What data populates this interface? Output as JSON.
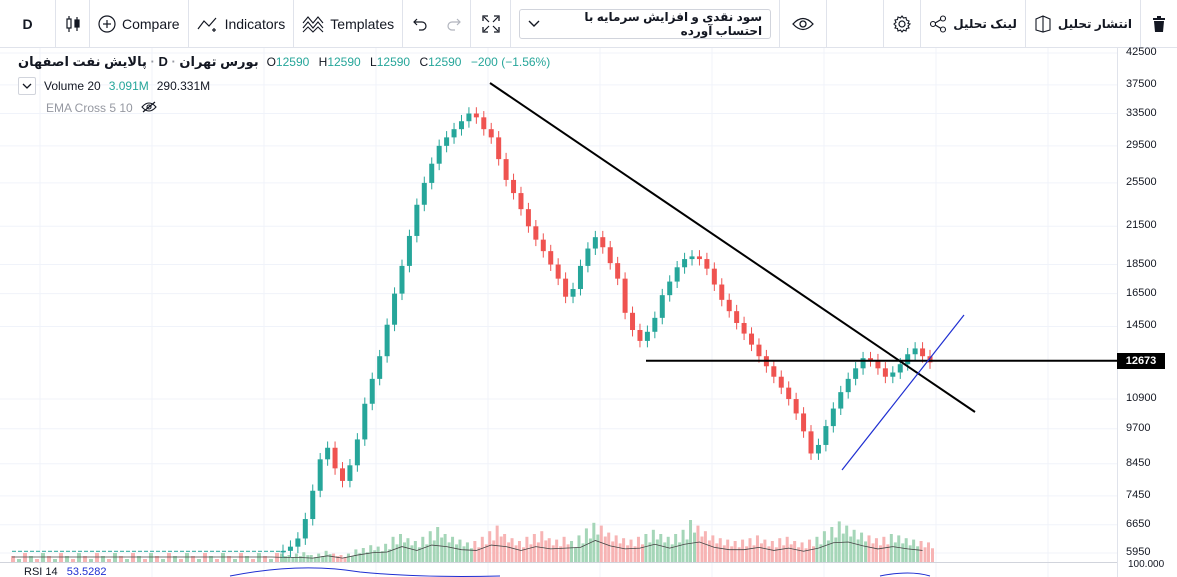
{
  "toolbar": {
    "interval": "D",
    "compare": "Compare",
    "indicators": "Indicators",
    "templates": "Templates",
    "dropdown_value": "سود نقدی و افزایش سرمایه با احتساب آورده",
    "share_link": "لینک تحلیل",
    "publish": "انتشار تحلیل"
  },
  "legend": {
    "exchange": "بورس تهران",
    "symbol": "پالایش نفت اصفهان",
    "interval": "D",
    "o_label": "O",
    "o": "12590",
    "h_label": "H",
    "h": "12590",
    "l_label": "L",
    "l": "12590",
    "c_label": "C",
    "c": "12590",
    "change": "−200 (−1.56%)",
    "volume_label": "Volume 20",
    "volume_value": "3.091M",
    "volume_ma": "290.331M",
    "ema_label": "EMA Cross 5 10"
  },
  "price_axis": {
    "ticks": [
      "42500",
      "37500",
      "33500",
      "29500",
      "25500",
      "21500",
      "18500",
      "16500",
      "14500",
      "10900",
      "9700",
      "8450",
      "7450",
      "6650",
      "5950"
    ],
    "current": "12673",
    "rsi_top": "100.000"
  },
  "rsi": {
    "label": "RSI 14",
    "value": "53.5282"
  },
  "colors": {
    "up": "#26a69a",
    "down": "#ef5350",
    "vol_up": "#a5d6b8",
    "vol_down": "#f7b4b4",
    "trendline": "#000000",
    "support": "#1f2fd1"
  },
  "chart_data": {
    "type": "candlestick",
    "scale": "log",
    "last_price": 12673,
    "resistance_line_price": 12673,
    "candles_close_trend": [
      6000,
      6100,
      6300,
      6800,
      7600,
      8600,
      9000,
      8300,
      7900,
      8400,
      9300,
      10700,
      11800,
      12900,
      14600,
      16500,
      18400,
      20700,
      23400,
      25500,
      27500,
      29500,
      30500,
      31500,
      32500,
      33500,
      33000,
      31500,
      30500,
      28000,
      25800,
      24500,
      23000,
      21500,
      20400,
      19500,
      18500,
      17500,
      16300,
      16800,
      18400,
      19700,
      20600,
      19800,
      18600,
      17500,
      15300,
      14300,
      13700,
      14200,
      15000,
      16400,
      17300,
      18300,
      18900,
      19100,
      18900,
      18200,
      17100,
      16100,
      15400,
      14700,
      14100,
      13500,
      12900,
      12400,
      11900,
      11400,
      10900,
      10300,
      9600,
      8800,
      9100,
      9800,
      10500,
      11200,
      11800,
      12300,
      12800,
      12700,
      12300,
      11900,
      12100,
      12500,
      13000,
      13300,
      12900,
      12590
    ],
    "volume_trend": [
      0.6,
      0.5,
      0.6,
      0.7,
      0.5,
      0.6,
      0.8,
      0.6,
      0.5,
      0.6,
      0.9,
      1.0,
      1.2,
      1.1,
      1.3,
      1.8,
      2.0,
      1.7,
      1.5,
      1.8,
      2.2,
      2.5,
      2.0,
      1.8,
      1.6,
      1.4,
      1.5,
      1.8,
      2.2,
      2.6,
      2.0,
      1.7,
      1.5,
      1.8,
      2.0,
      2.2,
      1.7,
      1.6,
      1.8,
      1.5,
      1.9,
      2.4,
      2.8,
      2.6,
      2.1,
      1.9,
      1.7,
      1.6,
      1.8,
      2.0,
      2.3,
      2.0,
      1.8,
      2.0,
      2.3,
      3.0,
      2.6,
      2.2,
      1.9,
      1.7,
      1.6,
      1.5,
      1.6,
      1.7,
      1.9,
      1.6,
      1.5,
      1.7,
      1.8,
      1.5,
      1.4,
      1.6,
      1.8,
      2.2,
      2.5,
      2.9,
      2.6,
      2.3,
      2.1,
      1.9,
      1.7,
      1.8,
      2.0,
      1.9,
      1.7,
      1.6,
      1.5,
      1.4
    ]
  }
}
